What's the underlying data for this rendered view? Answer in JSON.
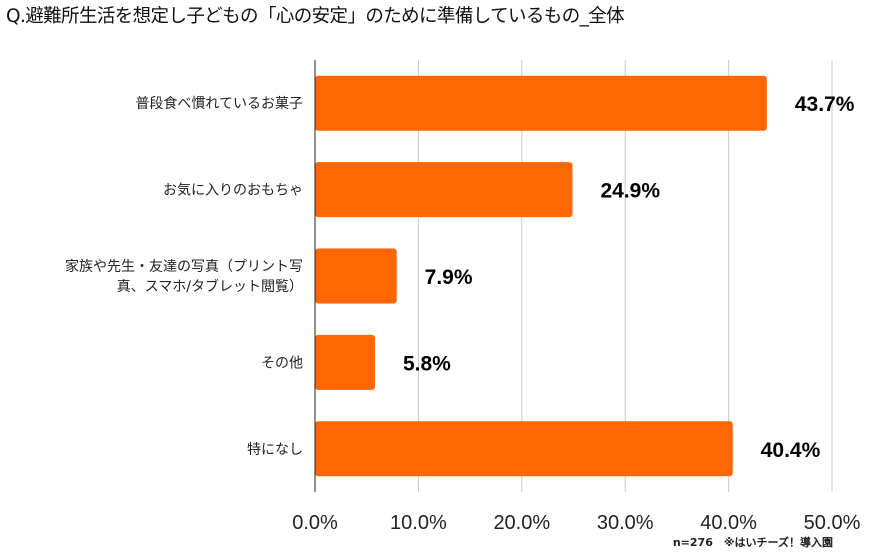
{
  "title": "Q.避難所生活を想定し子どもの「心の安定」のために準備しているもの_全体",
  "footnote": "n=276　※はいチーズ！導入園",
  "chart_data": {
    "type": "bar",
    "orientation": "horizontal",
    "categories": [
      [
        "普段食べ慣れているお菓子"
      ],
      [
        "お気に入りのおもちゃ"
      ],
      [
        "家族や先生・友達の写真（プリント写",
        "真、スマホ/タブレット閲覧）"
      ],
      [
        "その他"
      ],
      [
        "特になし"
      ]
    ],
    "values": [
      43.7,
      24.9,
      7.9,
      5.8,
      40.4
    ],
    "value_labels": [
      "43.7%",
      "24.9%",
      "7.9%",
      "5.8%",
      "40.4%"
    ],
    "xlim": [
      0,
      50
    ],
    "ticks": [
      "0.0%",
      "10.0%",
      "20.0%",
      "30.0%",
      "40.0%",
      "50.0%"
    ],
    "bar_color": "#ff6600",
    "grid": true
  }
}
